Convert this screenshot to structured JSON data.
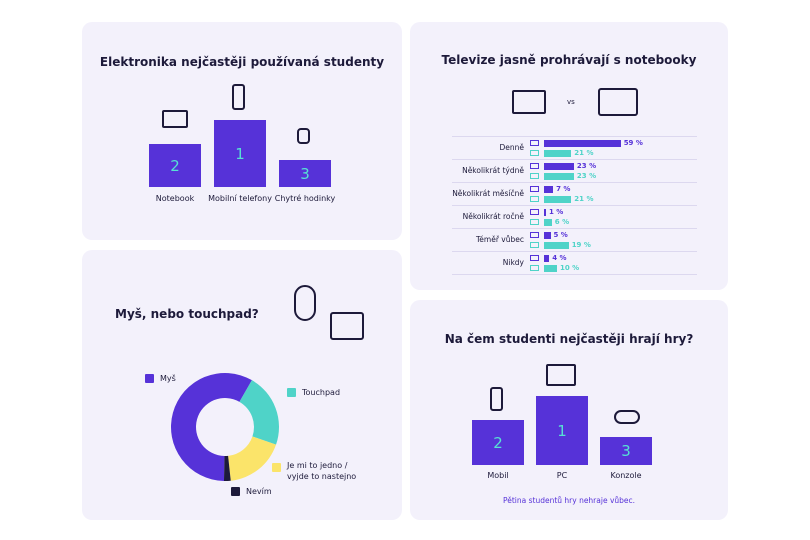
{
  "colors": {
    "primary": "#5632d8",
    "teal": "#4fd3c8",
    "yellow": "#fbe46a",
    "dark": "#1d1a3a"
  },
  "panel1": {
    "title": "Elektronika nejčastěji používaná studenty",
    "items": [
      {
        "label": "Notebook",
        "rank": "2",
        "icon": "laptop-icon"
      },
      {
        "label": "Mobilní telefony",
        "rank": "1",
        "icon": "phone-icon"
      },
      {
        "label": "Chytré hodinky",
        "rank": "3",
        "icon": "watch-icon"
      }
    ]
  },
  "panel2": {
    "title": "Televize jasně prohrávají s notebooky",
    "vs": "vs"
  },
  "panel3": {
    "title": "Myš, nebo touchpad?"
  },
  "panel4": {
    "title": "Na čem studenti nejčastěji hrají hry?",
    "items": [
      {
        "label": "Mobil",
        "rank": "2",
        "icon": "phone-icon"
      },
      {
        "label": "PC",
        "rank": "1",
        "icon": "desktop-pc-icon"
      },
      {
        "label": "Konzole",
        "rank": "3",
        "icon": "gamepad-icon"
      }
    ],
    "footnote": "Pětina studentů hry nehraje vůbec."
  },
  "chart_data": [
    {
      "type": "bar",
      "orientation": "horizontal",
      "categories": [
        "Denně",
        "Několikrát týdně",
        "Několikrát měsíčně",
        "Několikrát ročně",
        "Téměř vůbec",
        "Nikdy"
      ],
      "series": [
        {
          "icon": "laptop-icon",
          "color": "#5632d8",
          "values": [
            59,
            23,
            7,
            1,
            5,
            4
          ],
          "labels": [
            "59 %",
            "23 %",
            "7 %",
            "1 %",
            "5 %",
            "4 %"
          ]
        },
        {
          "icon": "tv-icon",
          "color": "#4fd3c8",
          "values": [
            21,
            23,
            21,
            6,
            19,
            10
          ],
          "labels": [
            "21 %",
            "23 %",
            "21 %",
            "6 %",
            "19 %",
            "10 %"
          ]
        }
      ]
    },
    {
      "type": "pie",
      "donut": true,
      "labels": [
        "Myš",
        "Touchpad",
        "Je mi to jedno / vyjde to nastejno",
        "Nevím"
      ],
      "values": [
        58,
        22,
        18,
        2
      ],
      "colors": [
        "#5632d8",
        "#4fd3c8",
        "#fbe46a",
        "#1d1a3a"
      ]
    }
  ]
}
